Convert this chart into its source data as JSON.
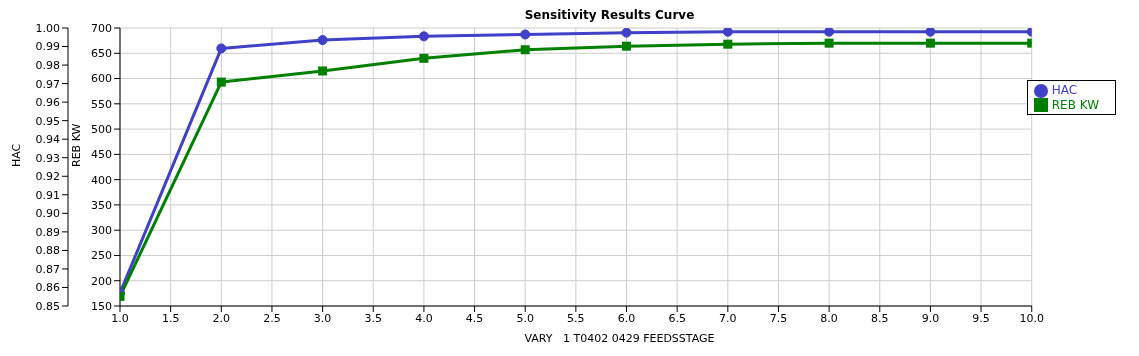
{
  "chart_data": {
    "type": "line",
    "title": "Sensitivity Results Curve",
    "xlabel": "VARY   1 T0402 0429 FEEDSSTAGE",
    "ylabel": "HAC",
    "y2label": "REB KW",
    "x": [
      1,
      2,
      3,
      4,
      5,
      6,
      7,
      8,
      9,
      10
    ],
    "series": [
      {
        "name": "HAC",
        "color": "#4040c8",
        "marker": "circle",
        "values": [
          0.857,
          0.989,
          0.9935,
          0.9955,
          0.9965,
          0.9975,
          0.998,
          0.998,
          0.998,
          0.998
        ]
      },
      {
        "name": "REB KW",
        "color": "#008000",
        "marker": "square",
        "axis": "y2",
        "values": [
          169,
          593,
          615,
          640,
          657,
          664,
          668,
          670,
          670,
          670
        ]
      }
    ],
    "xlim": [
      1,
      10
    ],
    "xticks": [
      {
        "value": 1,
        "label": "1.0"
      },
      {
        "value": 1.5,
        "label": "1.5"
      },
      {
        "value": 2,
        "label": "2.0"
      },
      {
        "value": 2.5,
        "label": "2.5"
      },
      {
        "value": 3,
        "label": "3.0"
      },
      {
        "value": 3.5,
        "label": "3.5"
      },
      {
        "value": 4,
        "label": "4.0"
      },
      {
        "value": 4.5,
        "label": "4.5"
      },
      {
        "value": 5,
        "label": "5.0"
      },
      {
        "value": 5.5,
        "label": "5.5"
      },
      {
        "value": 6,
        "label": "6.0"
      },
      {
        "value": 6.5,
        "label": "6.5"
      },
      {
        "value": 7,
        "label": "7.0"
      },
      {
        "value": 7.5,
        "label": "7.5"
      },
      {
        "value": 8,
        "label": "8.0"
      },
      {
        "value": 8.5,
        "label": "8.5"
      },
      {
        "value": 9,
        "label": "9.0"
      },
      {
        "value": 9.5,
        "label": "9.5"
      },
      {
        "value": 10,
        "label": "10.0"
      }
    ],
    "ylim": [
      0.85,
      1.0
    ],
    "yticks": [
      {
        "value": 0.85,
        "label": "0.85"
      },
      {
        "value": 0.86,
        "label": "0.86"
      },
      {
        "value": 0.87,
        "label": "0.87"
      },
      {
        "value": 0.88,
        "label": "0.88"
      },
      {
        "value": 0.89,
        "label": "0.89"
      },
      {
        "value": 0.9,
        "label": "0.90"
      },
      {
        "value": 0.91,
        "label": "0.91"
      },
      {
        "value": 0.92,
        "label": "0.92"
      },
      {
        "value": 0.93,
        "label": "0.93"
      },
      {
        "value": 0.94,
        "label": "0.94"
      },
      {
        "value": 0.95,
        "label": "0.95"
      },
      {
        "value": 0.96,
        "label": "0.96"
      },
      {
        "value": 0.97,
        "label": "0.97"
      },
      {
        "value": 0.98,
        "label": "0.98"
      },
      {
        "value": 0.99,
        "label": "0.99"
      },
      {
        "value": 1.0,
        "label": "1.00"
      }
    ],
    "y2lim": [
      150,
      700
    ],
    "y2ticks": [
      150,
      200,
      250,
      300,
      350,
      400,
      450,
      500,
      550,
      600,
      650,
      700
    ],
    "grid": true,
    "legend": "top right",
    "line_style": "solid"
  }
}
